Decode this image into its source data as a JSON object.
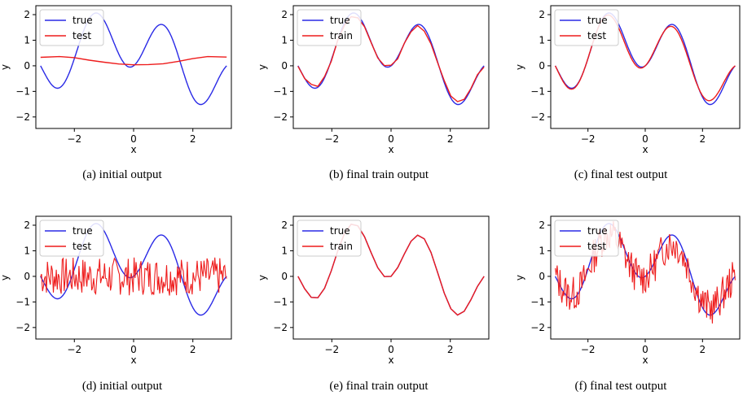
{
  "colors": {
    "true": "#2a2ae6",
    "model": "#ee1c1c",
    "axis": "#000000"
  },
  "chart_data": [
    {
      "type": "line",
      "caption": "(a) initial output",
      "xlabel": "x",
      "ylabel": "y",
      "xlim": [
        -3.3,
        3.3
      ],
      "ylim": [
        -2.45,
        2.35
      ],
      "xticks": [
        -2,
        0,
        2
      ],
      "yticks": [
        -2,
        -1,
        0,
        1,
        2
      ],
      "legend": {
        "position": "top-left",
        "labels": [
          "true",
          "test"
        ]
      },
      "series": [
        {
          "name": "true",
          "kind": "true"
        },
        {
          "name": "test",
          "kind": "flat",
          "x": [
            -3.14,
            -2.5,
            -2.0,
            -1.5,
            -1.0,
            -0.5,
            0.0,
            0.5,
            1.0,
            1.5,
            2.0,
            2.5,
            3.14
          ],
          "y": [
            0.33,
            0.36,
            0.32,
            0.22,
            0.14,
            0.07,
            0.04,
            0.05,
            0.08,
            0.17,
            0.28,
            0.36,
            0.34
          ]
        }
      ]
    },
    {
      "type": "line",
      "caption": "(b) final train output",
      "xlabel": "x",
      "ylabel": "y",
      "xlim": [
        -3.3,
        3.3
      ],
      "ylim": [
        -2.45,
        2.35
      ],
      "xticks": [
        -2,
        0,
        2
      ],
      "yticks": [
        -2,
        -1,
        0,
        1,
        2
      ],
      "legend": {
        "position": "top-left",
        "labels": [
          "true",
          "train"
        ]
      },
      "series": [
        {
          "name": "true",
          "kind": "true"
        },
        {
          "name": "train",
          "kind": "coarse",
          "n": 29,
          "dev": 0.12
        }
      ]
    },
    {
      "type": "line",
      "caption": "(c) final test output",
      "xlabel": "x",
      "ylabel": "y",
      "xlim": [
        -3.3,
        3.3
      ],
      "ylim": [
        -2.45,
        2.35
      ],
      "xticks": [
        -2,
        0,
        2
      ],
      "yticks": [
        -2,
        -1,
        0,
        1,
        2
      ],
      "legend": {
        "position": "top-left",
        "labels": [
          "true",
          "test"
        ]
      },
      "series": [
        {
          "name": "true",
          "kind": "true"
        },
        {
          "name": "test",
          "kind": "smooth",
          "dev": 0.1
        }
      ]
    },
    {
      "type": "line",
      "caption": "(d) initial output",
      "xlabel": "x",
      "ylabel": "y",
      "xlim": [
        -3.3,
        3.3
      ],
      "ylim": [
        -2.45,
        2.35
      ],
      "xticks": [
        -2,
        0,
        2
      ],
      "yticks": [
        -2,
        -1,
        0,
        1,
        2
      ],
      "legend": {
        "position": "top-left",
        "labels": [
          "true",
          "test"
        ]
      },
      "series": [
        {
          "name": "true",
          "kind": "true"
        },
        {
          "name": "test",
          "kind": "noise",
          "n": 190,
          "base": 0.0,
          "amp": 0.75,
          "seed": 7
        }
      ]
    },
    {
      "type": "line",
      "caption": "(e) final train output",
      "xlabel": "x",
      "ylabel": "y",
      "xlim": [
        -3.3,
        3.3
      ],
      "ylim": [
        -2.45,
        2.35
      ],
      "xticks": [
        -2,
        0,
        2
      ],
      "yticks": [
        -2,
        -1,
        0,
        1,
        2
      ],
      "legend": {
        "position": "top-left",
        "labels": [
          "true",
          "train"
        ]
      },
      "series": [
        {
          "name": "true",
          "kind": "coarse",
          "n": 29,
          "dev": 0
        },
        {
          "name": "train",
          "kind": "coarse",
          "n": 29,
          "dev": 0
        }
      ]
    },
    {
      "type": "line",
      "caption": "(f) final test output",
      "xlabel": "x",
      "ylabel": "y",
      "xlim": [
        -3.3,
        3.3
      ],
      "ylim": [
        -2.45,
        2.35
      ],
      "xticks": [
        -2,
        0,
        2
      ],
      "yticks": [
        -2,
        -1,
        0,
        1,
        2
      ],
      "legend": {
        "position": "top-left",
        "labels": [
          "true",
          "test"
        ]
      },
      "series": [
        {
          "name": "true",
          "kind": "true"
        },
        {
          "name": "test",
          "kind": "noisyfit",
          "n": 190,
          "amp": 0.7,
          "seed": 13
        }
      ]
    }
  ]
}
